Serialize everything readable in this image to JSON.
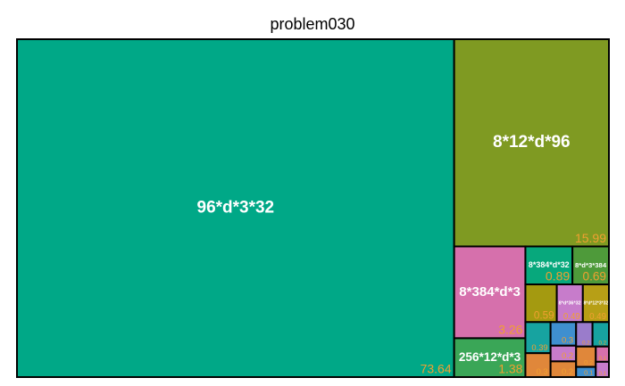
{
  "chart_data": {
    "type": "treemap",
    "title": "problem030",
    "labels": [
      "96*d*3*32",
      "8*12*d*96",
      "8*384*d*3",
      "256*12*d*3",
      "8*384*d*32",
      "8*d*3*384",
      null,
      "8*d*36*32",
      "8*d*12*3*32",
      null,
      null,
      null,
      null,
      null,
      null,
      null,
      null,
      null,
      null,
      null
    ],
    "values": [
      73.64,
      15.99,
      3.26,
      1.38,
      0.89,
      0.69,
      0.59,
      0.49,
      0.49,
      0.39,
      0.3,
      0.3,
      0.2,
      0.2,
      0.2,
      0.2,
      0.2,
      0.1,
      0.1,
      0.1
    ],
    "colors": [
      "#00a887",
      "#7f9a22",
      "#d670ac",
      "#3aa657",
      "#07a87c",
      "#4e9a3a",
      "#a49a10",
      "#c77ccb",
      "#b79f16",
      "#17a3a0",
      "#e0873a",
      "#3f8fcf",
      "#c77ccb",
      "#e0873a",
      "#9a7ccb",
      "#17a3a0",
      "#e0873a",
      "#3f8fcf",
      "#d670ac",
      "#c77ccb"
    ]
  }
}
